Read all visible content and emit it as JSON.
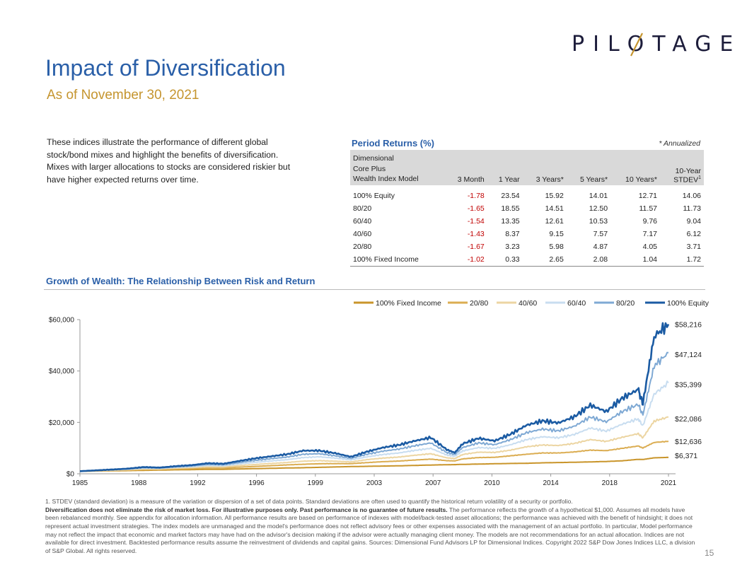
{
  "brand": {
    "name": "PILOTAGE"
  },
  "header": {
    "title": "Impact of Diversification",
    "subtitle": "As of November 30, 2021"
  },
  "intro": {
    "text": "These indices illustrate the performance of different global stock/bond mixes and highlight the benefits of diversification. Mixes with larger allocations to stocks are considered riskier but have higher expected returns over time."
  },
  "period_returns": {
    "title": "Period Returns (%)",
    "note": "* Annualized",
    "headers": {
      "model_line1": "Dimensional",
      "model_line2": "Core Plus",
      "model_line3": "Wealth Index Model",
      "m3": "3 Month",
      "y1": "1 Year",
      "y3": "3 Years*",
      "y5": "5 Years*",
      "y10": "10 Years*",
      "sd_line1": "10-Year",
      "sd_line2": "STDEV",
      "sd_sup": "1"
    },
    "rows": [
      {
        "model": "100% Equity",
        "m3": "-1.78",
        "y1": "23.54",
        "y3": "15.92",
        "y5": "14.01",
        "y10": "12.71",
        "sd": "14.06"
      },
      {
        "model": "80/20",
        "m3": "-1.65",
        "y1": "18.55",
        "y3": "14.51",
        "y5": "12.50",
        "y10": "11.57",
        "sd": "11.73"
      },
      {
        "model": "60/40",
        "m3": "-1.54",
        "y1": "13.35",
        "y3": "12.61",
        "y5": "10.53",
        "y10": "9.76",
        "sd": "9.04"
      },
      {
        "model": "40/60",
        "m3": "-1.43",
        "y1": "8.37",
        "y3": "9.15",
        "y5": "7.57",
        "y10": "7.17",
        "sd": "6.12"
      },
      {
        "model": "20/80",
        "m3": "-1.67",
        "y1": "3.23",
        "y3": "5.98",
        "y5": "4.87",
        "y10": "4.05",
        "sd": "3.71"
      },
      {
        "model": "100% Fixed Income",
        "m3": "-1.02",
        "y1": "0.33",
        "y3": "2.65",
        "y5": "2.08",
        "y10": "1.04",
        "sd": "1.72"
      }
    ]
  },
  "growth": {
    "title": "Growth of Wealth: The Relationship Between Risk and Return"
  },
  "chart_data": {
    "type": "line",
    "title": "Growth of Wealth: The Relationship Between Risk and Return",
    "xlabel": "",
    "ylabel": "",
    "xlim": [
      1985,
      2021.9
    ],
    "ylim": [
      0,
      60000
    ],
    "x_ticks": [
      "1985",
      "1988",
      "1992",
      "1996",
      "1999",
      "2003",
      "2007",
      "2010",
      "2014",
      "2018",
      "2021"
    ],
    "x_tick_values": [
      1985,
      1988.75,
      1992.5,
      1996.25,
      2000,
      2003.75,
      2007.5,
      2011.25,
      2015,
      2018.75,
      2022.5
    ],
    "y_ticks": [
      "$0",
      "$20,000",
      "$40,000",
      "$60,000"
    ],
    "y_tick_values": [
      0,
      20000,
      40000,
      60000
    ],
    "x": [
      1985,
      1986,
      1987,
      1988,
      1989,
      1990,
      1991,
      1992,
      1993,
      1994,
      1995,
      1996,
      1997,
      1998,
      1999,
      2000,
      2001,
      2002,
      2003,
      2004,
      2005,
      2006,
      2007,
      2008,
      2008.5,
      2009,
      2010,
      2011,
      2012,
      2013,
      2014,
      2015,
      2016,
      2017,
      2018,
      2019,
      2020,
      2020.3,
      2021,
      2021.9
    ],
    "legend_position": "top",
    "series": [
      {
        "name": "100% Fixed Income",
        "color": "#c9952b",
        "end_label": "$6,371",
        "values": [
          1000,
          1080,
          1150,
          1230,
          1330,
          1430,
          1540,
          1620,
          1720,
          1740,
          1880,
          1990,
          2120,
          2260,
          2350,
          2500,
          2660,
          2800,
          2900,
          3000,
          3100,
          3240,
          3400,
          3520,
          3560,
          3650,
          3780,
          3900,
          4010,
          4080,
          4250,
          4370,
          4480,
          4620,
          4780,
          5050,
          5600,
          5550,
          6200,
          6371
        ]
      },
      {
        "name": "20/80",
        "color": "#dbad52",
        "end_label": "$12,636",
        "values": [
          1000,
          1150,
          1300,
          1450,
          1630,
          1700,
          1900,
          2050,
          2250,
          2250,
          2580,
          2850,
          3150,
          3450,
          3700,
          3900,
          3950,
          3950,
          4350,
          4700,
          4950,
          5350,
          5700,
          5100,
          5000,
          5800,
          6300,
          6400,
          7000,
          7600,
          8100,
          8100,
          8500,
          9200,
          9000,
          9900,
          10800,
          10000,
          12200,
          12636
        ]
      },
      {
        "name": "40/60",
        "color": "#ecd5a2",
        "end_label": "$22,086",
        "values": [
          1000,
          1200,
          1400,
          1600,
          1900,
          1900,
          2200,
          2400,
          2700,
          2650,
          3200,
          3600,
          4000,
          4400,
          4900,
          5100,
          4900,
          4600,
          5500,
          6100,
          6500,
          7200,
          7800,
          6200,
          5900,
          7500,
          8400,
          8300,
          9200,
          10500,
          11200,
          11000,
          11800,
          13300,
          12600,
          14200,
          15600,
          14000,
          20500,
          22086
        ]
      },
      {
        "name": "60/40",
        "color": "#c8ddf0",
        "end_label": "$35,399",
        "values": [
          1000,
          1250,
          1500,
          1750,
          2150,
          2100,
          2500,
          2750,
          3200,
          3100,
          3850,
          4450,
          5000,
          5500,
          6300,
          6600,
          6100,
          5400,
          6600,
          7500,
          8100,
          9100,
          9900,
          7300,
          6800,
          8900,
          10200,
          9900,
          11300,
          13300,
          14400,
          14000,
          15300,
          17800,
          16600,
          19300,
          21400,
          18600,
          31000,
          35399
        ]
      },
      {
        "name": "80/20",
        "color": "#7fa9d4",
        "end_label": "$47,124",
        "values": [
          1000,
          1280,
          1580,
          1880,
          2400,
          2250,
          2700,
          3050,
          3650,
          3500,
          4400,
          5200,
          5900,
          6500,
          7600,
          7800,
          7000,
          6000,
          7600,
          8800,
          9600,
          10900,
          12000,
          8300,
          7500,
          10200,
          12000,
          11300,
          13300,
          16000,
          17400,
          16700,
          18500,
          22100,
          20200,
          24200,
          27000,
          22800,
          42000,
          47124
        ]
      },
      {
        "name": "100% Equity",
        "color": "#1b5ba3",
        "end_label": "$58,216",
        "values": [
          1000,
          1320,
          1650,
          2000,
          2600,
          2400,
          2950,
          3350,
          4100,
          3900,
          5000,
          6000,
          6800,
          7600,
          9000,
          9000,
          8000,
          6600,
          8600,
          10200,
          11200,
          12800,
          14100,
          9400,
          8200,
          11700,
          13800,
          12800,
          15400,
          18900,
          20600,
          19800,
          22200,
          26700,
          24200,
          29400,
          32800,
          27200,
          53500,
          58216
        ]
      }
    ]
  },
  "footnote": {
    "line1": "1. STDEV (standard deviation) is a measure of the variation or dispersion of a set of data points. Standard deviations are often used to quantify the historical return volatility of a security or portfolio.",
    "bold": "Diversification does not eliminate the risk of market loss. For illustrative purposes only. Past performance is no guarantee of future results.",
    "rest": " The performance reflects the growth of a hypothetical $1,000. Assumes all models have been rebalanced monthly. See appendix for allocation information. All performance results are based on performance of indexes with model/back-tested asset allocations; the performance was achieved with the benefit of hindsight; it does not represent actual investment strategies. The index models are unmanaged and the model's performance does not reflect advisory fees or other expenses associated with the management of an actual portfolio. In particular, Model performance may not reflect the impact that economic and market factors may have had on the advisor's decision making if the advisor were actually managing client money. The models are not recommendations for an actual allocation. Indices are not available for direct investment. Backtested performance results assume the reinvestment of dividends and capital gains. Sources: Dimensional Fund Advisors LP for Dimensional Indices. Copyright 2022 S&P Dow Jones Indices LLC, a division of S&P Global. All rights reserved."
  },
  "page": {
    "number": "15"
  },
  "colors": {
    "title_blue": "#2a5fa8",
    "gold": "#c5952f",
    "negative_red": "#c00000"
  }
}
